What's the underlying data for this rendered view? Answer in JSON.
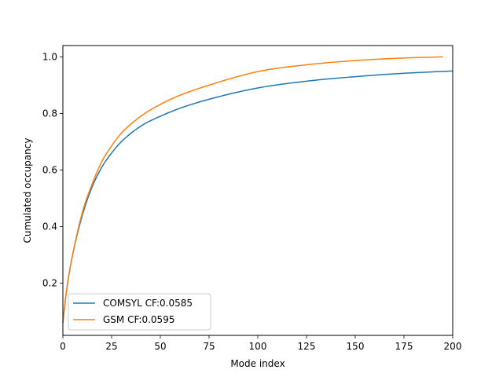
{
  "chart_data": {
    "type": "line",
    "title": "",
    "xlabel": "Mode index",
    "ylabel": "Cumulated occupancy",
    "xlim": [
      0,
      200
    ],
    "ylim": [
      0.015,
      1.04
    ],
    "xticks": [
      0,
      25,
      50,
      75,
      100,
      125,
      150,
      175,
      200
    ],
    "xtick_labels": [
      "0",
      "25",
      "50",
      "75",
      "100",
      "125",
      "150",
      "175",
      "200"
    ],
    "yticks": [
      0.2,
      0.4,
      0.6,
      0.8,
      1.0
    ],
    "ytick_labels": [
      "0.2",
      "0.4",
      "0.6",
      "0.8",
      "1.0"
    ],
    "grid": false,
    "legend_position": "lower-left",
    "series": [
      {
        "name": "COMSYL CF:0.0585",
        "color": "#1f77b4",
        "x": [
          0,
          2,
          5,
          10,
          15,
          20,
          25,
          30,
          40,
          50,
          60,
          75,
          100,
          125,
          150,
          175,
          200
        ],
        "y": [
          0.06,
          0.18,
          0.3,
          0.44,
          0.54,
          0.61,
          0.66,
          0.7,
          0.755,
          0.79,
          0.818,
          0.85,
          0.89,
          0.914,
          0.93,
          0.942,
          0.95
        ]
      },
      {
        "name": "GSM CF:0.0595",
        "color": "#ff7f0e",
        "x": [
          0,
          2,
          5,
          10,
          15,
          20,
          25,
          30,
          40,
          50,
          60,
          75,
          100,
          125,
          150,
          175,
          195
        ],
        "y": [
          0.06,
          0.18,
          0.3,
          0.45,
          0.55,
          0.63,
          0.685,
          0.73,
          0.79,
          0.832,
          0.864,
          0.9,
          0.948,
          0.972,
          0.987,
          0.996,
          1.0
        ]
      }
    ]
  }
}
